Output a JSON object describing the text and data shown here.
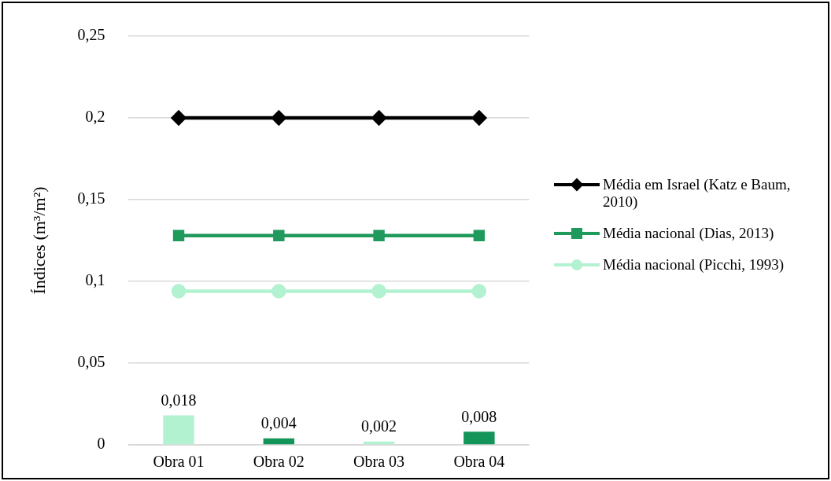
{
  "chart_data": {
    "type": "bar",
    "ylabel": "Índices (m³/m²)",
    "categories": [
      "Obra 01",
      "Obra 02",
      "Obra 03",
      "Obra 04"
    ],
    "series": [
      {
        "colors": [
          "#b3f2d1",
          "#13955a",
          "#b3f2d1",
          "#13955a"
        ],
        "values": [
          0.018,
          0.004,
          0.002,
          0.008
        ],
        "value_labels": [
          "0,018",
          "0,004",
          "0,002",
          "0,008"
        ]
      },
      {
        "type": "line",
        "name": "Média em Israel (Katz e Baum, 2010)",
        "color": "#000000",
        "marker": "diamond",
        "values": [
          0.2,
          0.2,
          0.2,
          0.2
        ]
      },
      {
        "type": "line",
        "name": "Média nacional (Dias, 2013)",
        "color": "#1f9a5c",
        "marker": "square",
        "values": [
          0.128,
          0.128,
          0.128,
          0.128
        ]
      },
      {
        "type": "line",
        "name": "Média nacional (Picchi, 1993)",
        "color": "#b3f2d1",
        "marker": "circle",
        "values": [
          0.094,
          0.094,
          0.094,
          0.094
        ]
      }
    ],
    "ylim": [
      0,
      0.25
    ],
    "yticks": [
      {
        "value": 0,
        "label": "0"
      },
      {
        "value": 0.05,
        "label": "0,05"
      },
      {
        "value": 0.1,
        "label": "0,1"
      },
      {
        "value": 0.15,
        "label": "0,15"
      },
      {
        "value": 0.2,
        "label": "0,2"
      },
      {
        "value": 0.25,
        "label": "0,25"
      }
    ],
    "grid": "y",
    "legend": "right",
    "line_style": "solid"
  }
}
